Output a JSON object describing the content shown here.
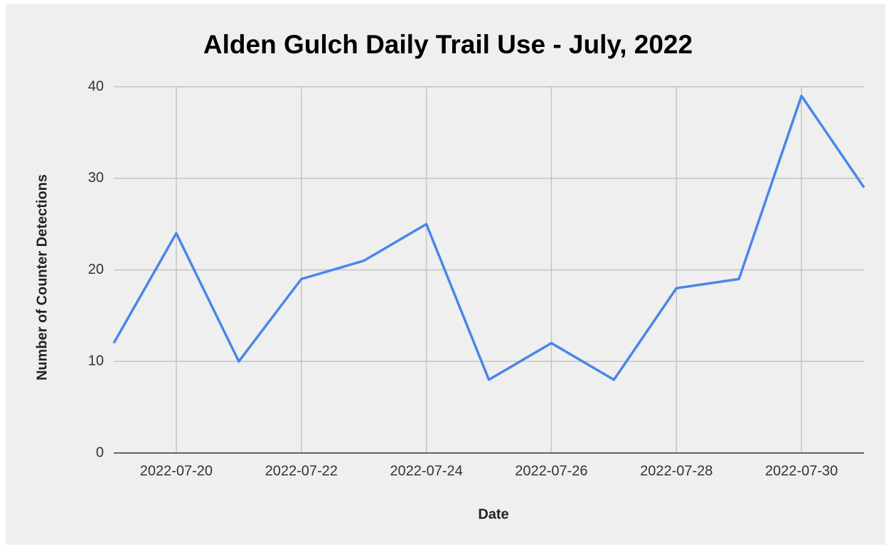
{
  "chart_data": {
    "type": "line",
    "title": "Alden Gulch Daily Trail Use - July, 2022",
    "x_label": "Date",
    "y_label": "Number of Counter Detections",
    "x": [
      "2022-07-19",
      "2022-07-20",
      "2022-07-21",
      "2022-07-22",
      "2022-07-23",
      "2022-07-24",
      "2022-07-25",
      "2022-07-26",
      "2022-07-27",
      "2022-07-28",
      "2022-07-29",
      "2022-07-30",
      "2022-07-31"
    ],
    "values": [
      12,
      24,
      10,
      19,
      21,
      25,
      8,
      12,
      8,
      18,
      19,
      39,
      29
    ],
    "color": "#4a86e8",
    "xlim": [
      "2022-07-19",
      "2022-07-31"
    ],
    "xticks": [
      "2022-07-20",
      "2022-07-22",
      "2022-07-24",
      "2022-07-26",
      "2022-07-28",
      "2022-07-30"
    ],
    "ylim": [
      0,
      40
    ],
    "yticks": [
      0,
      10,
      20,
      30,
      40
    ],
    "grid": true
  }
}
